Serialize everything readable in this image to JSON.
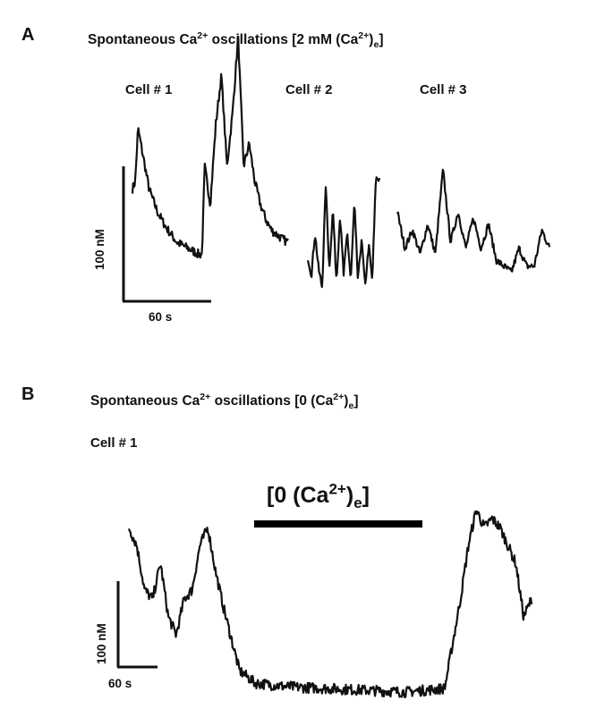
{
  "panels": [
    {
      "letter": "A",
      "title_main": "Spontaneous Ca",
      "title_sup": "2+",
      "title_mid": " oscillations [2 mM (Ca",
      "title_sup2": "2+",
      "title_end_paren": ")",
      "title_sub": "e",
      "title_close": "]",
      "scale_y_label": "100 nM",
      "scale_x_label": "60 s"
    },
    {
      "letter": "B",
      "title_main": "Spontaneous Ca",
      "title_sup": "2+",
      "title_mid": " oscillations [0 (Ca",
      "title_sup2": "2+",
      "title_end_paren": ")",
      "title_sub": "e",
      "title_close": "]",
      "cell_label": "Cell # 1",
      "condition_open": "[0 (Ca",
      "condition_sup": "2+",
      "condition_paren": ")",
      "condition_sub": "e",
      "condition_close": "]",
      "scale_y_label": "100 nM",
      "scale_x_label": "60 s"
    }
  ],
  "chart_data": [
    {
      "type": "line",
      "panel": "A",
      "series": [
        {
          "name": "Cell # 1",
          "x": [
            0,
            5,
            10,
            20,
            30,
            45,
            60,
            70,
            80,
            90,
            100,
            110,
            120,
            125,
            130,
            140,
            150,
            160,
            170,
            180,
            190,
            200,
            210,
            220,
            230,
            240,
            250,
            260,
            270,
            280
          ],
          "y": [
            0.55,
            0.6,
            0.95,
            0.75,
            0.55,
            0.4,
            0.3,
            0.25,
            0.2,
            0.18,
            0.16,
            0.14,
            0.12,
            0.12,
            0.7,
            0.45,
            0.98,
            1.3,
            0.7,
            1.05,
            1.55,
            0.7,
            0.85,
            0.6,
            0.45,
            0.35,
            0.28,
            0.25,
            0.22,
            0.2
          ]
        },
        {
          "name": "Cell # 2",
          "x": [
            0,
            5,
            10,
            15,
            20,
            25,
            30,
            35,
            40,
            45,
            50,
            55,
            60,
            65,
            70,
            75,
            80,
            85,
            90,
            95,
            100
          ],
          "y": [
            0.3,
            0.15,
            0.5,
            0.2,
            0.05,
            0.9,
            0.2,
            0.7,
            0.1,
            0.65,
            0.15,
            0.5,
            0.1,
            0.75,
            0.1,
            0.45,
            0.05,
            0.4,
            0.1,
            0.95,
            0.95
          ]
        },
        {
          "name": "Cell # 3",
          "x": [
            0,
            10,
            20,
            30,
            40,
            50,
            60,
            70,
            80,
            90,
            100,
            110,
            120,
            130,
            140,
            150,
            160,
            170,
            180,
            190,
            200
          ],
          "y": [
            0.6,
            0.3,
            0.45,
            0.25,
            0.5,
            0.25,
            0.95,
            0.35,
            0.6,
            0.3,
            0.55,
            0.3,
            0.5,
            0.2,
            0.15,
            0.1,
            0.3,
            0.15,
            0.15,
            0.45,
            0.3
          ]
        }
      ]
    },
    {
      "type": "line",
      "panel": "B",
      "series": [
        {
          "name": "Cell # 1",
          "x": [
            0,
            10,
            20,
            30,
            40,
            50,
            60,
            70,
            80,
            90,
            100,
            110,
            120,
            140,
            160,
            200,
            250,
            300,
            350,
            400,
            420,
            430,
            440,
            450,
            460,
            470,
            480,
            490,
            500,
            510
          ],
          "y": [
            0.95,
            0.85,
            0.6,
            0.55,
            0.75,
            0.45,
            0.35,
            0.55,
            0.6,
            0.85,
            0.95,
            0.7,
            0.5,
            0.15,
            0.08,
            0.06,
            0.05,
            0.04,
            0.03,
            0.05,
            0.55,
            0.85,
            1.05,
            0.95,
            1.0,
            0.95,
            0.85,
            0.75,
            0.45,
            0.55
          ]
        }
      ]
    }
  ]
}
